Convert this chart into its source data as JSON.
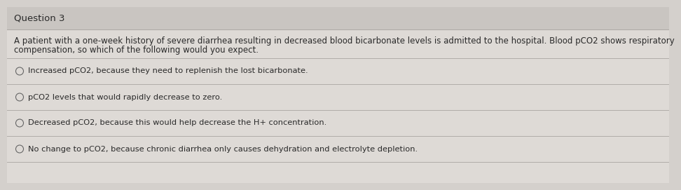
{
  "title": "Question 3",
  "question_line1": "A patient with a one-week history of severe diarrhea resulting in decreased blood bicarbonate levels is admitted to the hospital. Blood pCO2 shows respiratory",
  "question_line2": "compensation, so which of the following would you expect.",
  "options": [
    "Increased pCO2, because they need to replenish the lost bicarbonate.",
    "pCO2 levels that would rapidly decrease to zero.",
    "Decreased pCO2, because this would help decrease the H+ concentration.",
    "No change to pCO2, because chronic diarrhea only causes dehydration and electrolyte depletion."
  ],
  "bg_color": "#d4d0cc",
  "panel_color": "#dedad6",
  "title_bg": "#c9c5c1",
  "text_color": "#2a2a2a",
  "divider_color": "#b0aca8",
  "title_fontsize": 9.5,
  "question_fontsize": 8.5,
  "option_fontsize": 8.2
}
